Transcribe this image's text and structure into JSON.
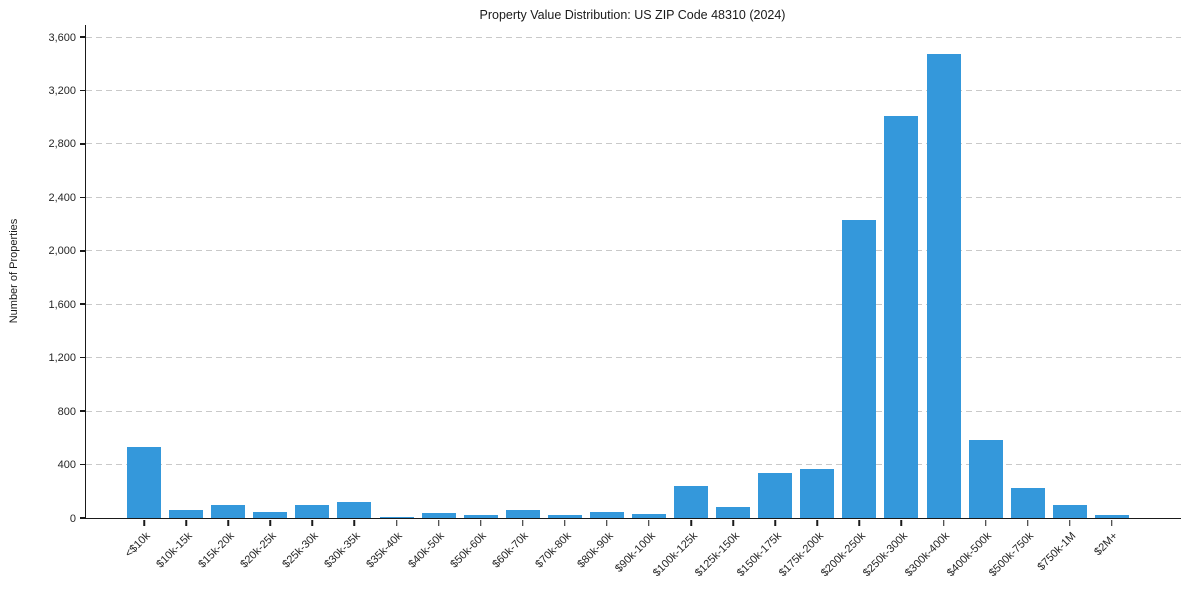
{
  "chart_data": {
    "type": "bar",
    "title": "Property Value Distribution: US ZIP Code 48310 (2024)",
    "xlabel": "",
    "ylabel": "Number of Properties",
    "categories": [
      "<$10k",
      "$10k-15k",
      "$15k-20k",
      "$20k-25k",
      "$25k-30k",
      "$30k-35k",
      "$35k-40k",
      "$40k-50k",
      "$50k-60k",
      "$60k-70k",
      "$70k-80k",
      "$80k-90k",
      "$90k-100k",
      "$100k-125k",
      "$125k-150k",
      "$150k-175k",
      "$175k-200k",
      "$200k-250k",
      "$250k-300k",
      "$300k-400k",
      "$400k-500k",
      "$500k-750k",
      "$750k-1M",
      "$2M+"
    ],
    "values": [
      530,
      60,
      100,
      45,
      95,
      120,
      10,
      40,
      20,
      60,
      25,
      45,
      30,
      240,
      85,
      335,
      365,
      2230,
      3010,
      3470,
      585,
      225,
      95,
      20
    ],
    "ylim": [
      0,
      3600
    ],
    "ytick_interval": 400,
    "ytick_labels": [
      "0",
      "400",
      "800",
      "1,200",
      "1,600",
      "2,000",
      "2,400",
      "2,800",
      "3,200",
      "3,600"
    ],
    "grid": "horizontal-dashed",
    "legend": "none",
    "x_tick_rotation_deg": 45,
    "bar_color": "#3498db",
    "background_color": "#ffffff",
    "axis_color": "#1a1a1a",
    "grid_color": "#c9c9c9",
    "text_color": "#262626"
  }
}
